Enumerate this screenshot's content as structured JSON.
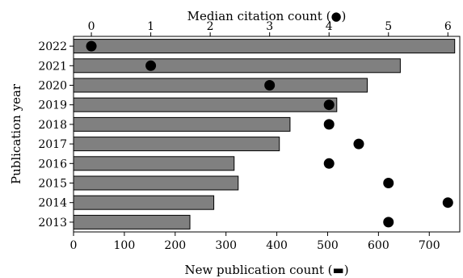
{
  "chart_data": {
    "type": "bar",
    "orientation": "horizontal",
    "categories": [
      "2022",
      "2021",
      "2020",
      "2019",
      "2018",
      "2017",
      "2016",
      "2015",
      "2014",
      "2013"
    ],
    "series": [
      {
        "name": "New publication count",
        "type": "bar",
        "axis": "bottom",
        "values": [
          750,
          643,
          578,
          518,
          426,
          405,
          316,
          324,
          276,
          229
        ]
      },
      {
        "name": "Median citation count",
        "type": "scatter",
        "axis": "top",
        "values": [
          0,
          1,
          3,
          4,
          4,
          4.5,
          4,
          5,
          6,
          5
        ]
      }
    ],
    "xlabel": "New publication count (▬)",
    "x2label": "Median citation count (●)",
    "ylabel": "Publication year",
    "xlim": [
      0,
      760
    ],
    "x2lim": [
      -0.3,
      6.2
    ],
    "xticks": [
      "0",
      "100",
      "200",
      "300",
      "400",
      "500",
      "600",
      "700"
    ],
    "x2ticks": [
      "0",
      "1",
      "2",
      "3",
      "4",
      "5",
      "6"
    ],
    "grid": false,
    "legend": "none",
    "colors": {
      "bar": "#808080",
      "dot": "#000000"
    }
  }
}
